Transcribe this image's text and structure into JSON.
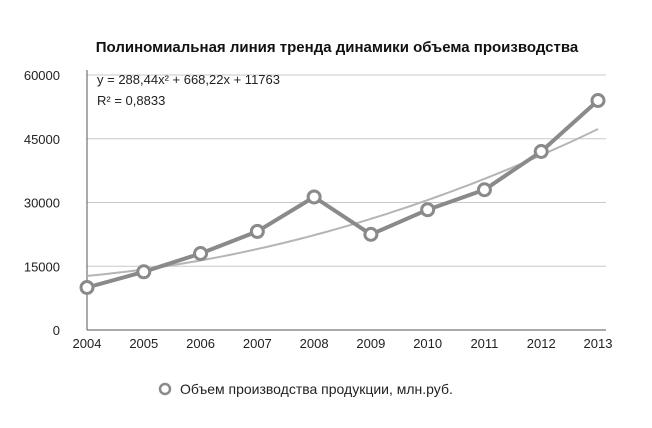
{
  "chart_data": {
    "type": "line",
    "title": "Полиномиальная линия тренда динамики объема производства",
    "xlabel": "",
    "ylabel": "",
    "x": [
      "2004",
      "2005",
      "2006",
      "2007",
      "2008",
      "2009",
      "2010",
      "2011",
      "2012",
      "2013"
    ],
    "ylim": [
      0,
      60000
    ],
    "yticks": [
      "0",
      "15000",
      "30000",
      "45000",
      "60000"
    ],
    "grid": true,
    "legend_position": "bottom",
    "series": [
      {
        "name": "Объем производства продукции, млн.руб.",
        "values": [
          10000,
          13700,
          18000,
          23200,
          31300,
          22500,
          28300,
          33000,
          42000,
          54000
        ],
        "color": "#8a8a8a"
      }
    ],
    "trendline": {
      "type": "polynomial",
      "order": 2,
      "coefficients": [
        288.44,
        668.22,
        11763
      ],
      "equation_label": "y = 288,44x² + 668,22x + 11763",
      "r2_label": "R² = 0,8833",
      "color": "#b5b5b5"
    }
  }
}
